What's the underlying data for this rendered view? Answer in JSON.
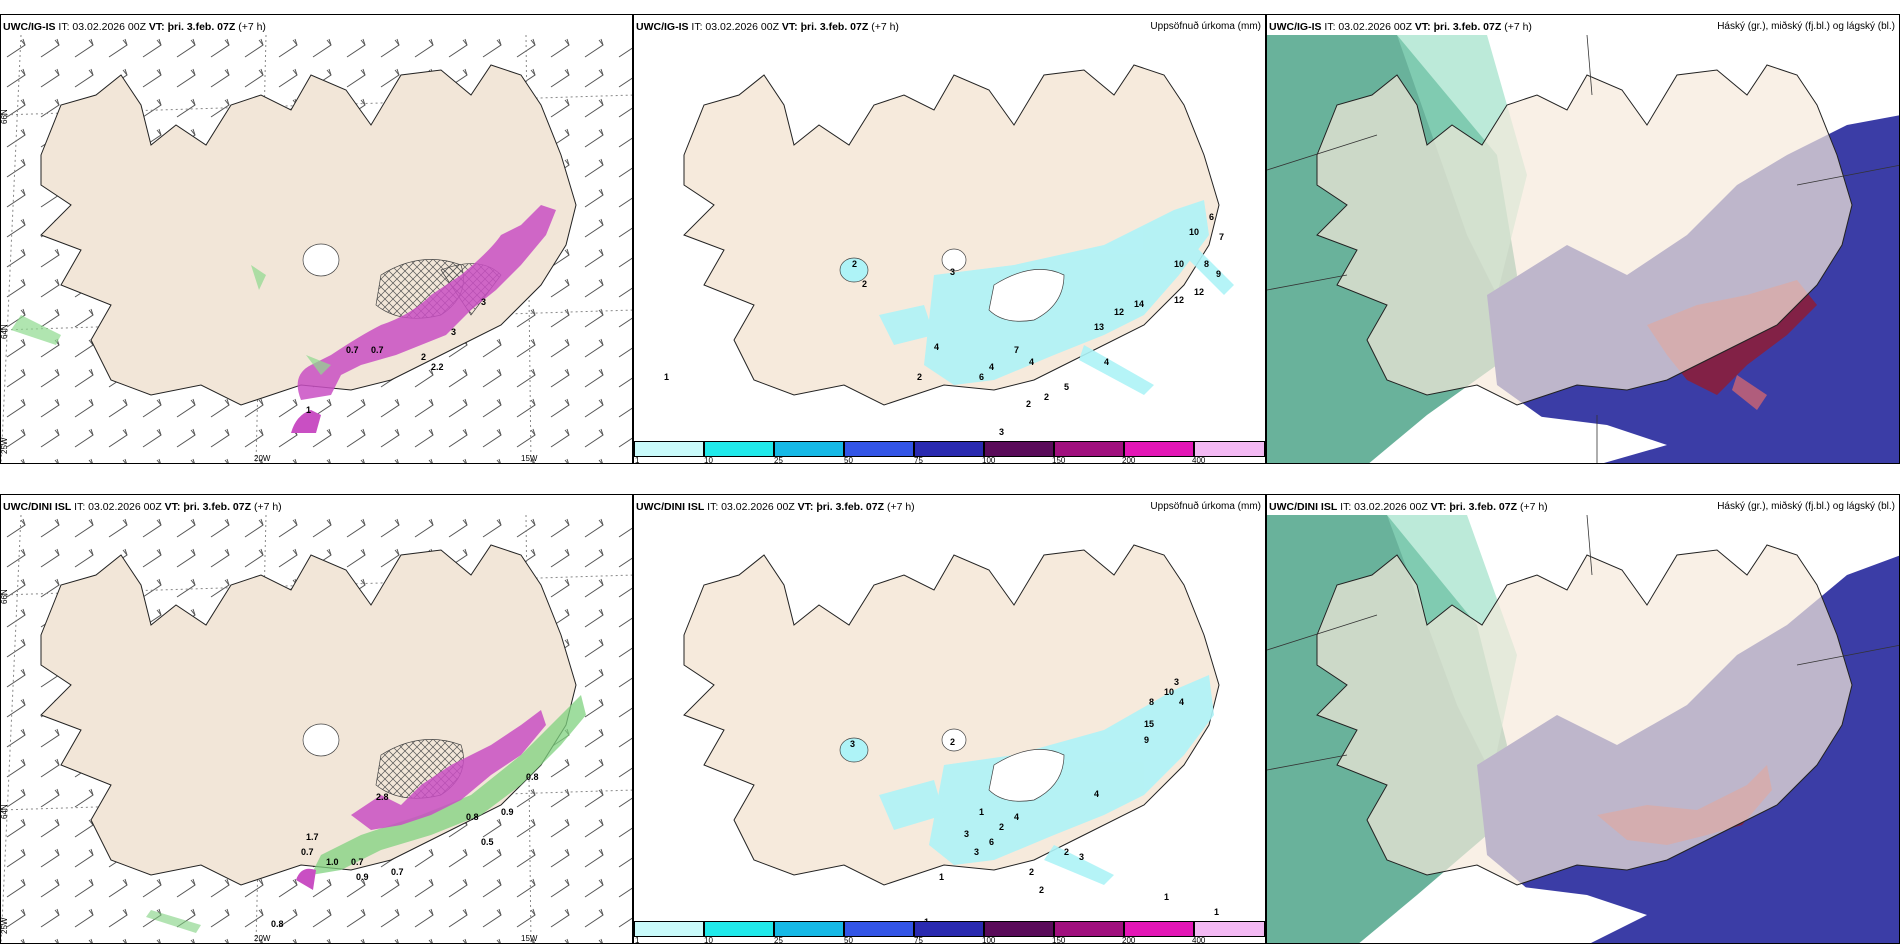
{
  "rows": [
    {
      "model": "UWC/IG-IS",
      "it_label": "IT: 03.02.2026 00Z",
      "vt_label": "VT: þri. 3.feb. 07Z",
      "lead": "(+7 h)"
    },
    {
      "model": "UWC/DINI ISL",
      "it_label": "IT: 03.02.2026 00Z",
      "vt_label": "VT: þri. 3.feb. 07Z",
      "lead": "(+7 h)"
    }
  ],
  "precip_title": "Uppsöfnuð úrkoma (mm)",
  "cloud_title": "Háský (gr.), miðský (fj.bl.) og lágský (bl.)",
  "axis_labels": {
    "lat66": "66N",
    "lat64": "64N",
    "lon25": "25W",
    "lon20": "20W",
    "lon15": "15W"
  },
  "colorbar": {
    "ticks": [
      "1",
      "10",
      "25",
      "50",
      "75",
      "100",
      "150",
      "200",
      "400"
    ],
    "colors": [
      "#c9fafa",
      "#21e9ea",
      "#16b9e6",
      "#3355e6",
      "#2a2ab0",
      "#5a0b5a",
      "#a0107e",
      "#e316b6",
      "#f3b9f3"
    ]
  },
  "top_snow_labels": [
    "0.7",
    "0.7",
    "2",
    "3",
    "3",
    "2.2",
    "1"
  ],
  "top_precip_labels": [
    "2",
    "2",
    "3",
    "1",
    "2",
    "4",
    "6",
    "7",
    "12",
    "4",
    "5",
    "2",
    "3",
    "10",
    "6",
    "7",
    "10",
    "12",
    "14",
    "12",
    "13",
    "9",
    "8",
    "4",
    "4",
    "2"
  ],
  "bottom_snow_labels": [
    "0.8",
    "0.7",
    "1.0",
    "0.7",
    "0.9",
    "0.7",
    "0.5",
    "2.8",
    "0.8",
    "0.9",
    "1.7",
    "0.8"
  ],
  "bottom_precip_labels": [
    "3",
    "2",
    "1",
    "4",
    "2",
    "3",
    "6",
    "3",
    "1",
    "2",
    "2",
    "3",
    "3",
    "10",
    "8",
    "15",
    "9",
    "4",
    "4",
    "2",
    "1",
    "1",
    "1"
  ],
  "colors": {
    "land": "#f6eadc",
    "wind_barb": "#444444",
    "snow_magenta": "#c94fc3",
    "snow_green": "#7fd17f",
    "precip_cyan": "#aef3f7",
    "cloud_dark": "#3e3ea8",
    "cloud_green": "#3f9f86",
    "cloud_red": "#8b1e3c"
  }
}
